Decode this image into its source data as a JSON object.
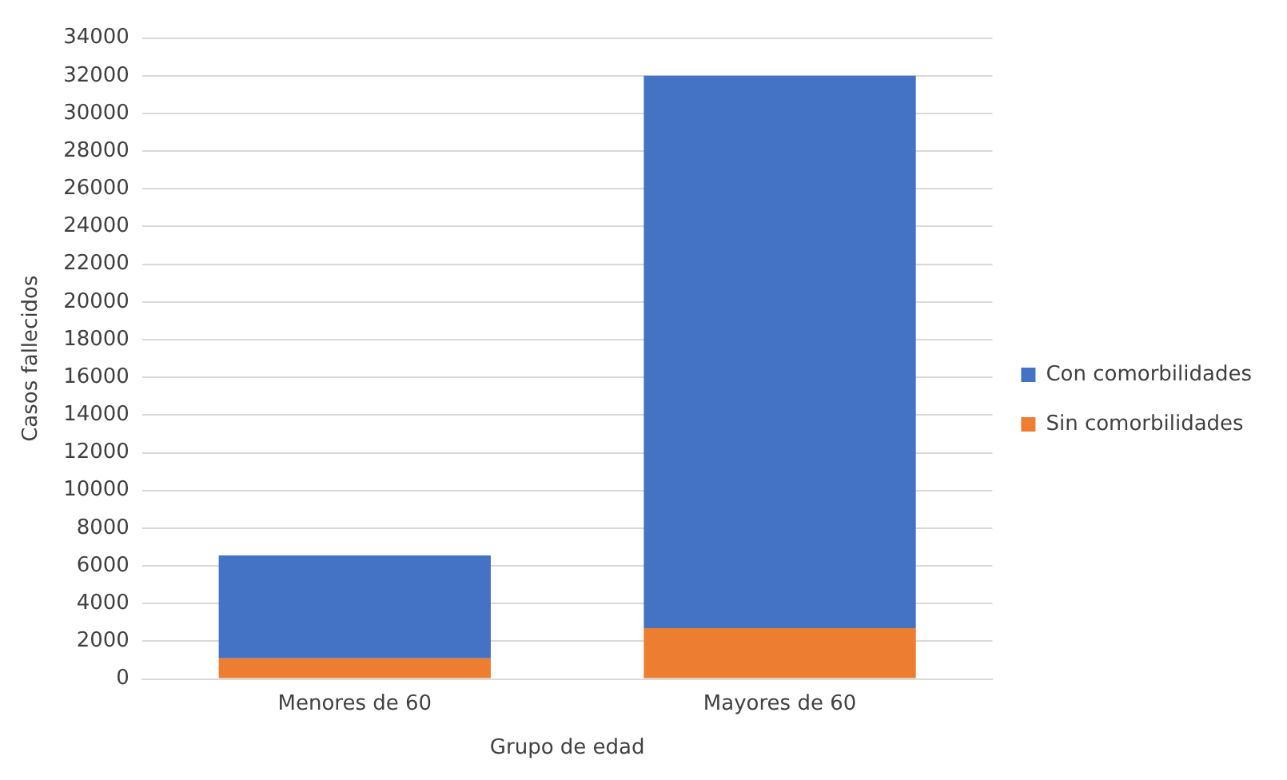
{
  "chart_data": {
    "type": "bar",
    "stacked": true,
    "xlabel": "Grupo de edad",
    "ylabel": "Casos fallecidos",
    "categories": [
      "Menores de 60",
      "Mayores de 60"
    ],
    "series": [
      {
        "name": "Sin comorbilidades",
        "color": "#ed7d31",
        "values": [
          1100,
          2700
        ]
      },
      {
        "name": "Con comorbilidades",
        "color": "#4472c4",
        "values": [
          5450,
          29300
        ]
      }
    ],
    "ylim": [
      0,
      34000
    ],
    "yticks": [
      0,
      2000,
      4000,
      6000,
      8000,
      10000,
      12000,
      14000,
      16000,
      18000,
      20000,
      22000,
      24000,
      26000,
      28000,
      30000,
      32000,
      34000
    ],
    "grid": "y",
    "legend": "right"
  }
}
